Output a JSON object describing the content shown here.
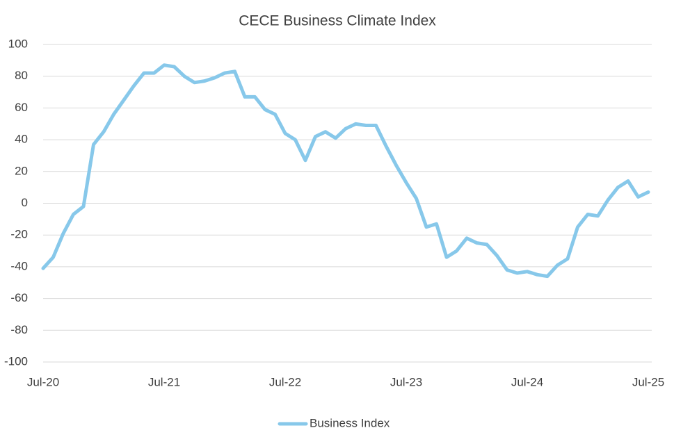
{
  "chart_data": {
    "type": "line",
    "title": "CECE Business Climate Index",
    "categories": [
      "Jul-20",
      null,
      null,
      null,
      null,
      null,
      null,
      null,
      null,
      null,
      null,
      null,
      "Jul-21",
      null,
      null,
      null,
      null,
      null,
      null,
      null,
      null,
      null,
      null,
      null,
      "Jul-22",
      null,
      null,
      null,
      null,
      null,
      null,
      null,
      null,
      null,
      null,
      null,
      "Jul-23",
      null,
      null,
      null,
      null,
      null,
      null,
      null,
      null,
      null,
      null,
      null,
      "Jul-24",
      null,
      null,
      null,
      null,
      null,
      null,
      null,
      null,
      null,
      null,
      null,
      "Jul-25"
    ],
    "series": [
      {
        "name": "Business Index",
        "color": "#87c8ea",
        "values": [
          -41,
          -34,
          -19,
          -7,
          -2,
          37,
          45,
          56,
          65,
          74,
          82,
          82,
          87,
          86,
          80,
          76,
          77,
          79,
          82,
          83,
          67,
          67,
          59,
          56,
          44,
          40,
          27,
          42,
          45,
          41,
          47,
          50,
          49,
          49,
          36,
          24,
          13,
          3,
          -15,
          -13,
          -34,
          -30,
          -22,
          -25,
          -26,
          -33,
          -42,
          -44,
          -43,
          -45,
          -46,
          -39,
          -35,
          -15,
          -7,
          -8,
          2,
          10,
          14,
          4,
          7
        ]
      }
    ],
    "ylim": [
      -100,
      100
    ],
    "yticks": [
      -100,
      -80,
      -60,
      -40,
      -20,
      0,
      20,
      40,
      60,
      80,
      100
    ],
    "grid": true,
    "legend": "bottom"
  }
}
